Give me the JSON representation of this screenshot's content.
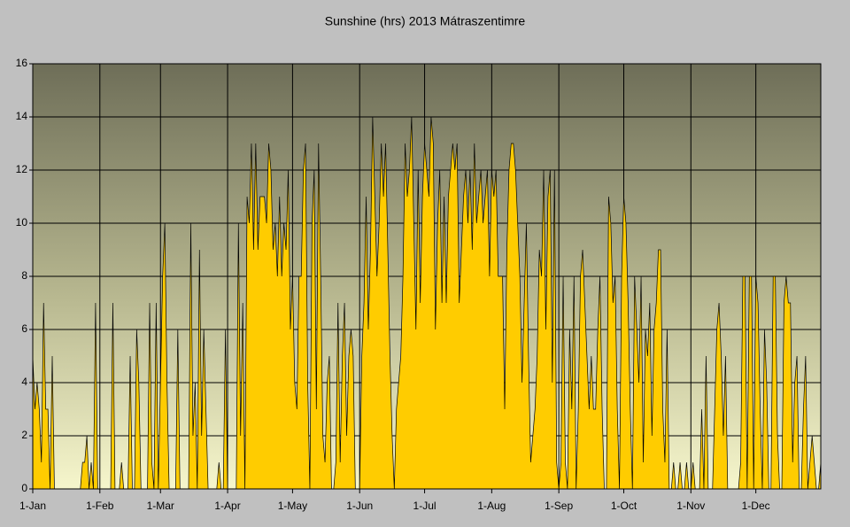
{
  "chart_data": {
    "type": "area",
    "title": "Sunshine (hrs) 2013 Mátraszentimre",
    "color": "#ffcc00",
    "line_color": "#000000",
    "grid": true,
    "ylim": [
      0,
      16
    ],
    "yticks": [
      0,
      2,
      4,
      6,
      8,
      10,
      12,
      14,
      16
    ],
    "categories": [
      "1-Jan",
      null,
      null,
      null,
      null,
      null,
      null,
      null,
      null,
      null,
      null,
      null,
      null,
      null,
      null,
      null,
      null,
      null,
      null,
      null,
      null,
      null,
      null,
      null,
      null,
      null,
      null,
      null,
      null,
      null,
      null,
      "1-Feb",
      null,
      null,
      null,
      null,
      null,
      null,
      null,
      null,
      null,
      null,
      null,
      null,
      null,
      null,
      null,
      null,
      null,
      null,
      null,
      null,
      null,
      null,
      null,
      null,
      null,
      null,
      null,
      "1-Mar",
      null,
      null,
      null,
      null,
      null,
      null,
      null,
      null,
      null,
      null,
      null,
      null,
      null,
      null,
      null,
      null,
      null,
      null,
      null,
      null,
      null,
      null,
      null,
      null,
      null,
      null,
      null,
      null,
      null,
      null,
      "1-Apr",
      null,
      null,
      null,
      null,
      null,
      null,
      null,
      null,
      null,
      null,
      null,
      null,
      null,
      null,
      null,
      null,
      null,
      null,
      null,
      null,
      null,
      null,
      null,
      null,
      null,
      null,
      null,
      null,
      null,
      "1-May",
      null,
      null,
      null,
      null,
      null,
      null,
      null,
      null,
      null,
      null,
      null,
      null,
      null,
      null,
      null,
      null,
      null,
      null,
      null,
      null,
      null,
      null,
      null,
      null,
      null,
      null,
      null,
      null,
      null,
      null,
      "1-Jun",
      null,
      null,
      null,
      null,
      null,
      null,
      null,
      null,
      null,
      null,
      null,
      null,
      null,
      null,
      null,
      null,
      null,
      null,
      null,
      null,
      null,
      null,
      null,
      null,
      null,
      null,
      null,
      null,
      null,
      "1-Jul",
      null,
      null,
      null,
      null,
      null,
      null,
      null,
      null,
      null,
      null,
      null,
      null,
      null,
      null,
      null,
      null,
      null,
      null,
      null,
      null,
      null,
      null,
      null,
      null,
      null,
      null,
      null,
      null,
      null,
      null,
      "1-Aug",
      null,
      null,
      null,
      null,
      null,
      null,
      null,
      null,
      null,
      null,
      null,
      null,
      null,
      null,
      null,
      null,
      null,
      null,
      null,
      null,
      null,
      null,
      null,
      null,
      null,
      null,
      null,
      null,
      null,
      null,
      "1-Sep",
      null,
      null,
      null,
      null,
      null,
      null,
      null,
      null,
      null,
      null,
      null,
      null,
      null,
      null,
      null,
      null,
      null,
      null,
      null,
      null,
      null,
      null,
      null,
      null,
      null,
      null,
      null,
      null,
      null,
      "1-Oct",
      null,
      null,
      null,
      null,
      null,
      null,
      null,
      null,
      null,
      null,
      null,
      null,
      null,
      null,
      null,
      null,
      null,
      null,
      null,
      null,
      null,
      null,
      null,
      null,
      null,
      null,
      null,
      null,
      null,
      null,
      "1-Nov",
      null,
      null,
      null,
      null,
      null,
      null,
      null,
      null,
      null,
      null,
      null,
      null,
      null,
      null,
      null,
      null,
      null,
      null,
      null,
      null,
      null,
      null,
      null,
      null,
      null,
      null,
      null,
      null,
      null,
      "1-Dec",
      null,
      null,
      null,
      null,
      null,
      null,
      null,
      null,
      null,
      null,
      null,
      null,
      null,
      null,
      null,
      null,
      null,
      null,
      null,
      null,
      null,
      null,
      null,
      null,
      null,
      null,
      null,
      null,
      null,
      null
    ],
    "values": [
      5,
      3,
      4,
      3,
      1,
      7,
      3,
      3,
      0,
      5,
      0,
      0,
      0,
      0,
      0,
      0,
      0,
      0,
      0,
      0,
      0,
      0,
      0,
      1,
      1,
      2,
      0,
      1,
      0,
      7,
      0,
      0,
      0,
      0,
      0,
      0,
      0,
      7,
      0,
      0,
      0,
      1,
      0,
      0,
      0,
      5,
      0,
      0,
      6,
      4,
      0,
      0,
      0,
      0,
      7,
      1,
      0,
      7,
      0,
      4,
      8,
      10,
      4,
      0,
      0,
      0,
      0,
      6,
      0,
      0,
      0,
      0,
      0,
      10,
      2,
      4,
      0,
      9,
      2,
      6,
      3,
      0,
      0,
      0,
      0,
      0,
      1,
      0,
      0,
      6,
      0,
      0,
      0,
      0,
      0,
      10,
      2,
      7,
      0,
      11,
      10,
      13,
      9,
      13,
      9,
      11,
      11,
      11,
      10,
      13,
      12,
      9,
      10,
      8,
      11,
      8,
      10,
      9,
      12,
      6,
      8,
      4,
      3,
      8,
      8,
      12,
      13,
      4,
      0,
      10,
      12,
      3,
      13,
      8,
      2,
      1,
      4,
      5,
      0,
      0,
      1,
      7,
      1,
      5,
      7,
      2,
      5,
      6,
      5,
      0,
      0,
      0,
      5,
      7,
      11,
      6,
      9,
      14,
      11,
      8,
      10,
      13,
      11,
      13,
      9,
      5,
      2,
      0,
      3,
      4,
      5,
      8,
      13,
      11,
      12,
      14,
      10,
      6,
      12,
      7,
      11,
      13,
      12,
      11,
      14,
      13,
      6,
      10,
      12,
      7,
      11,
      7,
      11,
      12,
      13,
      12,
      13,
      7,
      9,
      11,
      12,
      10,
      12,
      9,
      13,
      10,
      11,
      12,
      10,
      11,
      12,
      8,
      12,
      11,
      12,
      8,
      8,
      8,
      3,
      9,
      12,
      13,
      13,
      12,
      10,
      8,
      4,
      7,
      10,
      5,
      1,
      2,
      3,
      5,
      9,
      8,
      12,
      6,
      11,
      12,
      4,
      12,
      1,
      0,
      1,
      8,
      1,
      0,
      6,
      3,
      8,
      0,
      3,
      8,
      9,
      7,
      5,
      3,
      5,
      3,
      3,
      6,
      8,
      3,
      0,
      0,
      11,
      10,
      7,
      8,
      3,
      0,
      8,
      11,
      10,
      7,
      3,
      0,
      8,
      6,
      4,
      8,
      1,
      6,
      5,
      7,
      2,
      6,
      7,
      9,
      9,
      3,
      1,
      6,
      0,
      0,
      1,
      0,
      0,
      1,
      0,
      0,
      1,
      0,
      0,
      1,
      0,
      0,
      0,
      3,
      0,
      5,
      0,
      0,
      0,
      3,
      6,
      7,
      5,
      2,
      5,
      0,
      0,
      0,
      0,
      0,
      0,
      1,
      8,
      8,
      0,
      8,
      8,
      0,
      8,
      7,
      3,
      0,
      6,
      4,
      0,
      0,
      8,
      8,
      2,
      0,
      0,
      7,
      8,
      7,
      7,
      1,
      4,
      5,
      0,
      0,
      3,
      5,
      0,
      1,
      2,
      1,
      0,
      0,
      1
    ]
  }
}
